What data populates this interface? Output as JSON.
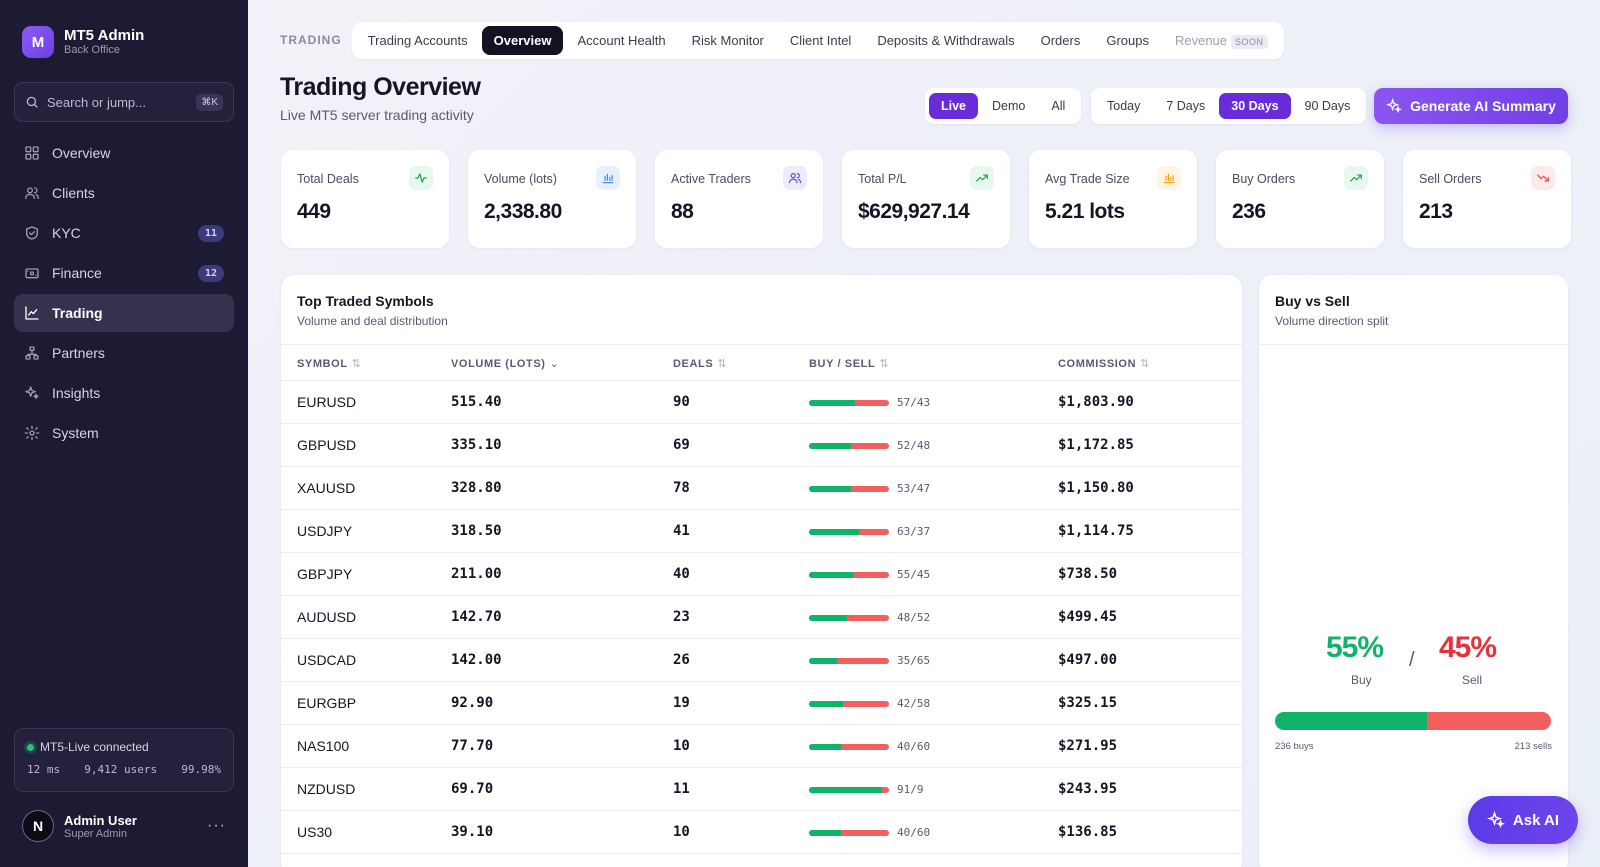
{
  "sidebar": {
    "brand_letter": "M",
    "brand_name": "MT5 Admin",
    "brand_sub": "Back Office",
    "search_placeholder": "Search or jump...",
    "search_shortcut": "⌘K",
    "items": [
      {
        "label": "Overview",
        "icon": "grid-icon"
      },
      {
        "label": "Clients",
        "icon": "users-icon"
      },
      {
        "label": "KYC",
        "icon": "shield-icon",
        "badge": "11"
      },
      {
        "label": "Finance",
        "icon": "wallet-icon",
        "badge": "12"
      },
      {
        "label": "Trading",
        "icon": "chart-line-icon",
        "active": true
      },
      {
        "label": "Partners",
        "icon": "network-icon"
      },
      {
        "label": "Insights",
        "icon": "sparkles-icon"
      },
      {
        "label": "System",
        "icon": "gear-icon"
      }
    ],
    "connection": {
      "status": "MT5-Live connected",
      "latency": "12 ms",
      "users": "9,412 users",
      "uptime": "99.98%"
    },
    "user": {
      "initial": "N",
      "name": "Admin User",
      "role": "Super Admin"
    }
  },
  "topnav": {
    "section_label": "TRADING",
    "tabs": [
      "Trading Accounts",
      "Overview",
      "Account Health",
      "Risk Monitor",
      "Client Intel",
      "Deposits & Withdrawals",
      "Orders",
      "Groups",
      "Revenue"
    ],
    "active_tab": "Overview",
    "soon_badge": "SOON"
  },
  "header": {
    "title": "Trading Overview",
    "subtitle": "Live MT5 server trading activity",
    "env_options": [
      "Live",
      "Demo",
      "All"
    ],
    "env_selected": "Live",
    "range_options": [
      "Today",
      "7 Days",
      "30 Days",
      "90 Days"
    ],
    "range_selected": "30 Days",
    "ai_button": "Generate AI Summary"
  },
  "kpis": [
    {
      "label": "Total Deals",
      "value": "449",
      "icon": "activity-icon",
      "color": "#16a34a",
      "bg": "#e8f8ee"
    },
    {
      "label": "Volume (lots)",
      "value": "2,338.80",
      "icon": "bar-chart-icon",
      "color": "#3b82f6",
      "bg": "#e8f0fe"
    },
    {
      "label": "Active Traders",
      "value": "88",
      "icon": "users-icon",
      "color": "#5b4bd6",
      "bg": "#eeebfb"
    },
    {
      "label": "Total P/L",
      "value": "$629,927.14",
      "icon": "trending-up-icon",
      "color": "#16a34a",
      "bg": "#e8f8ee"
    },
    {
      "label": "Avg Trade Size",
      "value": "5.21 lots",
      "icon": "bar-chart-icon",
      "color": "#f59e0b",
      "bg": "#fef4e2"
    },
    {
      "label": "Buy Orders",
      "value": "236",
      "icon": "trending-up-icon",
      "color": "#16a34a",
      "bg": "#e8f8ee"
    },
    {
      "label": "Sell Orders",
      "value": "213",
      "icon": "trending-down-icon",
      "color": "#ef4444",
      "bg": "#fdeaea"
    }
  ],
  "symbols_table": {
    "title": "Top Traded Symbols",
    "subtitle": "Volume and deal distribution",
    "columns": [
      "SYMBOL",
      "VOLUME (LOTS)",
      "DEALS",
      "BUY / SELL",
      "COMMISSION"
    ],
    "rows": [
      {
        "symbol": "EURUSD",
        "volume": "515.40",
        "deals": "90",
        "buy": 57,
        "sell": 43,
        "split": "57/43",
        "commission": "$1,803.90"
      },
      {
        "symbol": "GBPUSD",
        "volume": "335.10",
        "deals": "69",
        "buy": 52,
        "sell": 48,
        "split": "52/48",
        "commission": "$1,172.85"
      },
      {
        "symbol": "XAUUSD",
        "volume": "328.80",
        "deals": "78",
        "buy": 53,
        "sell": 47,
        "split": "53/47",
        "commission": "$1,150.80"
      },
      {
        "symbol": "USDJPY",
        "volume": "318.50",
        "deals": "41",
        "buy": 63,
        "sell": 37,
        "split": "63/37",
        "commission": "$1,114.75"
      },
      {
        "symbol": "GBPJPY",
        "volume": "211.00",
        "deals": "40",
        "buy": 55,
        "sell": 45,
        "split": "55/45",
        "commission": "$738.50"
      },
      {
        "symbol": "AUDUSD",
        "volume": "142.70",
        "deals": "23",
        "buy": 48,
        "sell": 52,
        "split": "48/52",
        "commission": "$499.45"
      },
      {
        "symbol": "USDCAD",
        "volume": "142.00",
        "deals": "26",
        "buy": 35,
        "sell": 65,
        "split": "35/65",
        "commission": "$497.00"
      },
      {
        "symbol": "EURGBP",
        "volume": "92.90",
        "deals": "19",
        "buy": 42,
        "sell": 58,
        "split": "42/58",
        "commission": "$325.15"
      },
      {
        "symbol": "NAS100",
        "volume": "77.70",
        "deals": "10",
        "buy": 40,
        "sell": 60,
        "split": "40/60",
        "commission": "$271.95"
      },
      {
        "symbol": "NZDUSD",
        "volume": "69.70",
        "deals": "11",
        "buy": 91,
        "sell": 9,
        "split": "91/9",
        "commission": "$243.95"
      },
      {
        "symbol": "US30",
        "volume": "39.10",
        "deals": "10",
        "buy": 40,
        "sell": 60,
        "split": "40/60",
        "commission": "$136.85"
      }
    ]
  },
  "buy_sell": {
    "title": "Buy vs Sell",
    "subtitle": "Volume direction split",
    "buy_pct": "55%",
    "sell_pct": "45%",
    "buy_label": "Buy",
    "sell_label": "Sell",
    "separator": "/",
    "buy_fraction": 0.55,
    "buys_text": "236 buys",
    "sells_text": "213 sells",
    "buy_color": "#10b36a",
    "sell_color": "#f35f5f"
  },
  "ask_ai": "Ask AI"
}
